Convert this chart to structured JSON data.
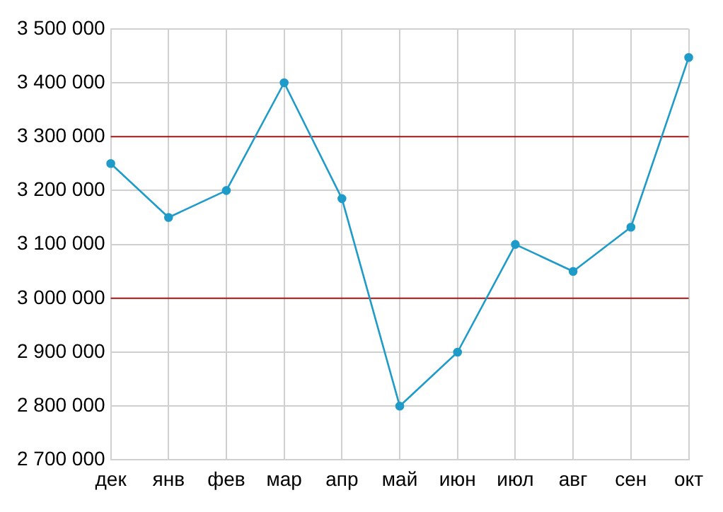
{
  "chart_data": {
    "type": "line",
    "categories": [
      "дек",
      "янв",
      "фев",
      "мар",
      "апр",
      "май",
      "июн",
      "июл",
      "авг",
      "сен",
      "окт"
    ],
    "series": [
      {
        "color": "#1e9bc8",
        "values": [
          3250000,
          3150000,
          3200000,
          3400000,
          3185000,
          2800000,
          2900000,
          3100000,
          3050000,
          3132000,
          3447000
        ]
      }
    ],
    "ylim": [
      2700000,
      3500000
    ],
    "yticks": [
      {
        "value": 2700000,
        "label": "2 700 000"
      },
      {
        "value": 2800000,
        "label": "2 800 000"
      },
      {
        "value": 2900000,
        "label": "2 900 000"
      },
      {
        "value": 3000000,
        "label": "3 000 000"
      },
      {
        "value": 3100000,
        "label": "3 100 000"
      },
      {
        "value": 3200000,
        "label": "3 200 000"
      },
      {
        "value": 3300000,
        "label": "3 300 000"
      },
      {
        "value": 3400000,
        "label": "3 400 000"
      },
      {
        "value": 3500000,
        "label": "3 500 000"
      }
    ],
    "ref_lines": [
      {
        "axis": "y",
        "value": 3300000,
        "color": "#a31515"
      },
      {
        "axis": "y",
        "value": 3000000,
        "color": "#a31515"
      }
    ],
    "grid": true,
    "legend": false,
    "marker": "circle",
    "line_style": "solid"
  }
}
